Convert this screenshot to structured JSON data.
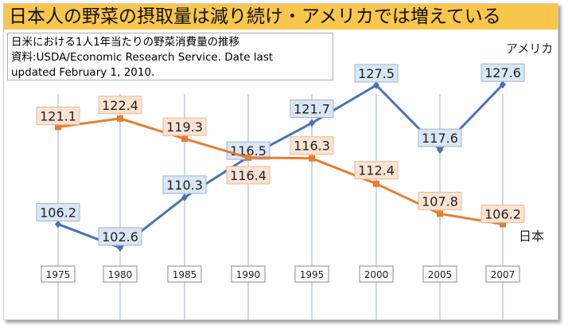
{
  "title": "日本人の野菜の摂取量は減り続け・アメリカでは増えている",
  "note": {
    "line1": "日米における1人1年当たりの野菜消費量の推移",
    "line2": "資料:USDA/Economic Research Service. Date last",
    "line3": "updated February 1, 2010."
  },
  "chart_data": {
    "type": "line",
    "categories": [
      "1975",
      "1980",
      "1985",
      "1990",
      "1995",
      "2000",
      "2005",
      "2007"
    ],
    "series": [
      {
        "name": "アメリカ",
        "color": "#4a72b8",
        "label_bg": "#dbe6f4",
        "values": [
          106.2,
          102.6,
          110.3,
          116.5,
          121.7,
          127.5,
          117.6,
          127.6
        ]
      },
      {
        "name": "日本",
        "color": "#e67e30",
        "label_bg": "#fbe3d3",
        "values": [
          121.1,
          122.4,
          119.3,
          116.4,
          116.3,
          112.4,
          107.8,
          106.2
        ]
      }
    ],
    "ylim": [
      100,
      130
    ],
    "grid": "vertical"
  }
}
